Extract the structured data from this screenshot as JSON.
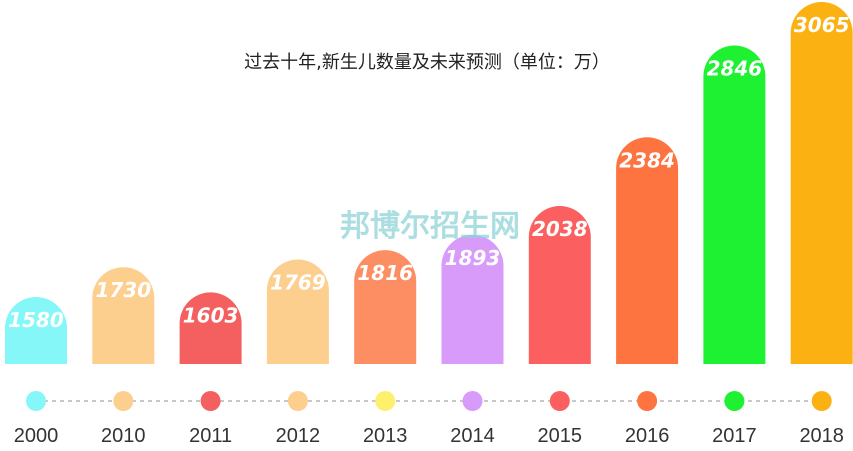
{
  "chart_data": {
    "type": "bar",
    "title": "过去十年,新生儿数量及未来预测（单位：万）",
    "categories": [
      "2000",
      "2010",
      "2011",
      "2012",
      "2013",
      "2014",
      "2015",
      "2016",
      "2017",
      "2018"
    ],
    "values": [
      1580,
      1730,
      1603,
      1769,
      1816,
      1893,
      2038,
      2384,
      2846,
      3065
    ],
    "value_labels": [
      "1580",
      "1730",
      "1603",
      "1769",
      "1816",
      "1893",
      "2038",
      "2384",
      "2846",
      "3065"
    ],
    "colors": [
      "#86f7f8",
      "#fccf8f",
      "#f45f5f",
      "#fccf8f",
      "#fd8e63",
      "#d89bf9",
      "#fc5f5f",
      "#fd7440",
      "#1ef132",
      "#fbb112"
    ],
    "dot_colors": [
      "#86f7f8",
      "#fccf8f",
      "#f45f5f",
      "#fccf8f",
      "#fdf06d",
      "#d89bf9",
      "#fc5f5f",
      "#fd7440",
      "#1ef132",
      "#fbb112"
    ],
    "ylim": [
      1000,
      3150
    ],
    "grid": false,
    "legend": "none"
  },
  "watermark": "邦博尔招生网"
}
